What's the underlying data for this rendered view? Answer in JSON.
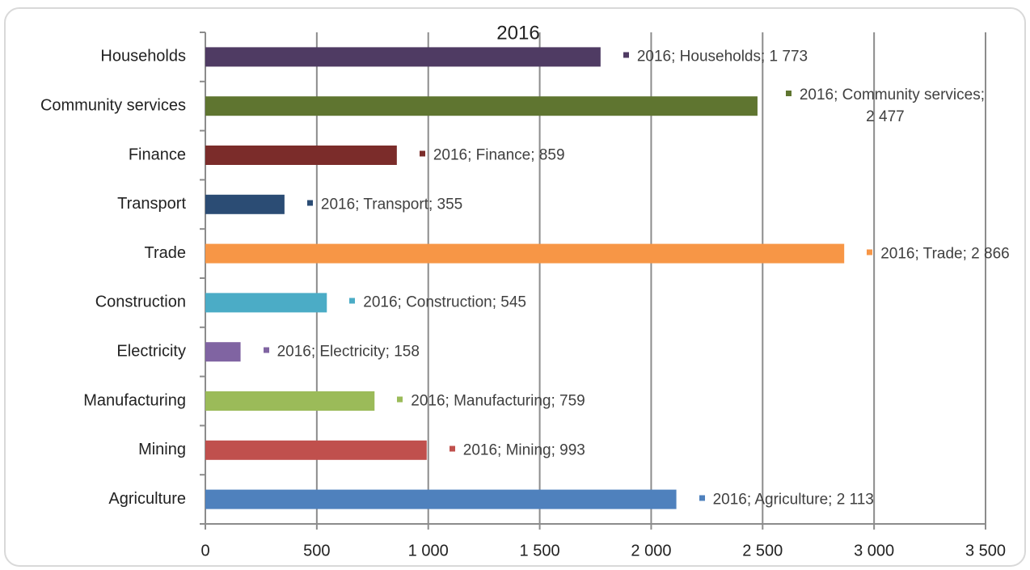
{
  "chart_data": {
    "type": "barh",
    "title": "2016",
    "categories": [
      "Households",
      "Community services",
      "Finance",
      "Transport",
      "Trade",
      "Construction",
      "Electricity",
      "Manufacturing",
      "Mining",
      "Agriculture"
    ],
    "values": [
      1773,
      2477,
      859,
      355,
      2866,
      545,
      158,
      759,
      993,
      2113
    ],
    "value_labels": [
      "2016; Households; 1 773",
      "2016; Community services; 2 477",
      "2016; Finance; 859",
      "2016; Transport; 355",
      "2016; Trade; 2 866",
      "2016; Construction; 545",
      "2016; Electricity; 158",
      "2016; Manufacturing; 759",
      "2016; Mining; 993",
      "2016; Agriculture; 2 113"
    ],
    "colors": [
      "#4f3b63",
      "#5f7530",
      "#7b2c2a",
      "#2b4c74",
      "#f79646",
      "#4bacc6",
      "#8064a2",
      "#9bbb59",
      "#c0504d",
      "#4f81bd"
    ],
    "xlim": [
      0,
      3500
    ],
    "xticks": [
      0,
      500,
      {
        "value": 1000,
        "label": "1 000"
      },
      {
        "value": 1500,
        "label": "1 500"
      },
      {
        "value": 2000,
        "label": "2 000"
      },
      {
        "value": 2500,
        "label": "2 500"
      },
      {
        "value": 3000,
        "label": "3 000"
      },
      {
        "value": 3500,
        "label": "3 500"
      }
    ],
    "grid": true
  }
}
